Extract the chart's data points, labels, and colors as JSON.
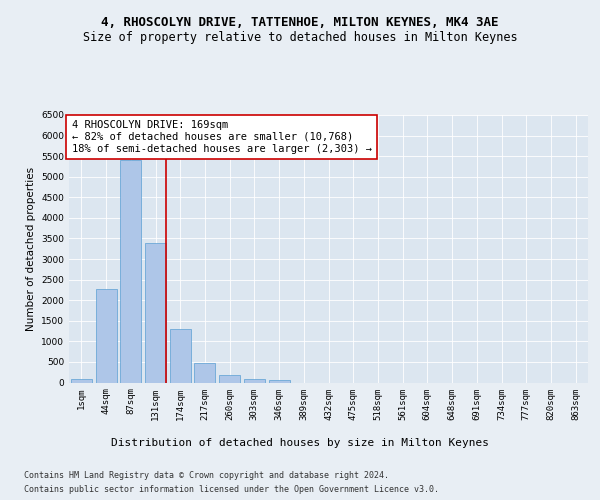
{
  "title1": "4, RHOSCOLYN DRIVE, TATTENHOE, MILTON KEYNES, MK4 3AE",
  "title2": "Size of property relative to detached houses in Milton Keynes",
  "xlabel": "Distribution of detached houses by size in Milton Keynes",
  "ylabel": "Number of detached properties",
  "footer1": "Contains HM Land Registry data © Crown copyright and database right 2024.",
  "footer2": "Contains public sector information licensed under the Open Government Licence v3.0.",
  "annotation_line1": "4 RHOSCOLYN DRIVE: 169sqm",
  "annotation_line2": "← 82% of detached houses are smaller (10,768)",
  "annotation_line3": "18% of semi-detached houses are larger (2,303) →",
  "bin_labels": [
    "1sqm",
    "44sqm",
    "87sqm",
    "131sqm",
    "174sqm",
    "217sqm",
    "260sqm",
    "303sqm",
    "346sqm",
    "389sqm",
    "432sqm",
    "475sqm",
    "518sqm",
    "561sqm",
    "604sqm",
    "648sqm",
    "691sqm",
    "734sqm",
    "777sqm",
    "820sqm",
    "863sqm"
  ],
  "bar_heights": [
    75,
    2280,
    5400,
    3380,
    1310,
    480,
    185,
    80,
    50,
    0,
    0,
    0,
    0,
    0,
    0,
    0,
    0,
    0,
    0,
    0,
    0
  ],
  "bar_color": "#aec6e8",
  "bar_edge_color": "#5a9fd4",
  "vline_color": "#cc0000",
  "vline_x": 3.43,
  "ylim": [
    0,
    6500
  ],
  "yticks": [
    0,
    500,
    1000,
    1500,
    2000,
    2500,
    3000,
    3500,
    4000,
    4500,
    5000,
    5500,
    6000,
    6500
  ],
  "bg_color": "#e8eef4",
  "plot_bg_color": "#dce6f0",
  "title1_fontsize": 9,
  "title2_fontsize": 8.5,
  "xlabel_fontsize": 8,
  "ylabel_fontsize": 7.5,
  "tick_fontsize": 6.5,
  "annotation_fontsize": 7.5,
  "footer_fontsize": 6
}
